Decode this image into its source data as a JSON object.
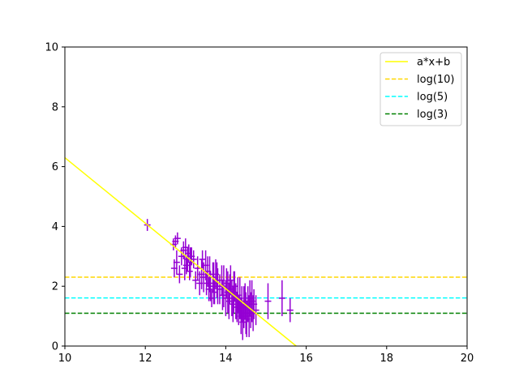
{
  "chart_data": {
    "type": "scatter",
    "xlim": [
      10,
      20
    ],
    "ylim": [
      0,
      10
    ],
    "x_ticks": [
      10,
      12,
      14,
      16,
      18,
      20
    ],
    "y_ticks": [
      0,
      2,
      4,
      6,
      8,
      10
    ],
    "x_tick_labels": [
      "10",
      "12",
      "14",
      "16",
      "18",
      "20"
    ],
    "y_tick_labels": [
      "0",
      "2",
      "4",
      "6",
      "8",
      "10"
    ],
    "grid": false,
    "legend_placement": "top-right",
    "fit_line": {
      "name": "a*x+b",
      "color": "#ffff00",
      "points": [
        [
          10,
          6.3
        ],
        [
          15.75,
          0
        ]
      ]
    },
    "reference_lines": [
      {
        "name": "log(10)",
        "y": 2.303,
        "color": "#ffd700",
        "style": "dashed"
      },
      {
        "name": "log(5)",
        "y": 1.609,
        "color": "#00ffff",
        "style": "dashed"
      },
      {
        "name": "log(3)",
        "y": 1.099,
        "color": "#008000",
        "style": "dashed"
      }
    ],
    "error_points_color": "#9400d3",
    "error_points": [
      [
        12.05,
        4.05,
        0.2
      ],
      [
        12.7,
        3.4,
        0.2
      ],
      [
        12.72,
        2.6,
        0.3
      ],
      [
        12.75,
        3.5,
        0.2
      ],
      [
        12.78,
        2.8,
        0.4
      ],
      [
        12.8,
        3.6,
        0.2
      ],
      [
        12.85,
        2.4,
        0.3
      ],
      [
        12.9,
        3.0,
        0.3
      ],
      [
        12.95,
        3.2,
        0.3
      ],
      [
        12.98,
        2.6,
        0.4
      ],
      [
        13.0,
        3.3,
        0.3
      ],
      [
        13.02,
        2.7,
        0.3
      ],
      [
        13.05,
        2.9,
        0.4
      ],
      [
        13.08,
        3.1,
        0.3
      ],
      [
        13.1,
        2.5,
        0.3
      ],
      [
        13.12,
        2.8,
        0.5
      ],
      [
        13.15,
        3.0,
        0.3
      ],
      [
        13.2,
        2.9,
        0.3
      ],
      [
        13.25,
        2.2,
        0.3
      ],
      [
        13.3,
        2.6,
        0.4
      ],
      [
        13.35,
        2.1,
        0.4
      ],
      [
        13.4,
        2.4,
        0.5
      ],
      [
        13.42,
        2.9,
        0.3
      ],
      [
        13.45,
        2.3,
        0.5
      ],
      [
        13.5,
        2.7,
        0.5
      ],
      [
        13.52,
        2.1,
        0.4
      ],
      [
        13.55,
        2.5,
        0.5
      ],
      [
        13.58,
        1.9,
        0.4
      ],
      [
        13.6,
        2.4,
        0.6
      ],
      [
        13.62,
        2.0,
        0.5
      ],
      [
        13.65,
        1.6,
        0.3
      ],
      [
        13.68,
        2.3,
        0.5
      ],
      [
        13.7,
        2.1,
        0.7
      ],
      [
        13.72,
        1.8,
        0.4
      ],
      [
        13.75,
        2.4,
        0.5
      ],
      [
        13.78,
        2.2,
        0.6
      ],
      [
        13.8,
        2.0,
        0.6
      ],
      [
        13.85,
        1.9,
        0.5
      ],
      [
        13.9,
        2.2,
        0.5
      ],
      [
        13.92,
        1.7,
        0.5
      ],
      [
        13.95,
        2.0,
        0.7
      ],
      [
        14.0,
        1.6,
        0.6
      ],
      [
        14.02,
        2.1,
        0.5
      ],
      [
        14.05,
        1.8,
        0.7
      ],
      [
        14.08,
        1.5,
        0.6
      ],
      [
        14.1,
        1.9,
        0.5
      ],
      [
        14.12,
        2.2,
        0.5
      ],
      [
        14.15,
        1.6,
        0.6
      ],
      [
        14.18,
        1.4,
        0.6
      ],
      [
        14.2,
        1.8,
        0.7
      ],
      [
        14.22,
        2.0,
        0.5
      ],
      [
        14.25,
        1.5,
        0.6
      ],
      [
        14.28,
        1.3,
        0.5
      ],
      [
        14.3,
        1.7,
        0.6
      ],
      [
        14.32,
        1.2,
        0.5
      ],
      [
        14.35,
        1.6,
        0.7
      ],
      [
        14.38,
        1.0,
        0.6
      ],
      [
        14.4,
        1.4,
        0.6
      ],
      [
        14.42,
        0.8,
        0.6
      ],
      [
        14.45,
        1.3,
        0.7
      ],
      [
        14.48,
        1.5,
        0.6
      ],
      [
        14.5,
        1.1,
        0.7
      ],
      [
        14.52,
        0.9,
        0.6
      ],
      [
        14.55,
        1.4,
        0.6
      ],
      [
        14.58,
        1.0,
        0.7
      ],
      [
        14.6,
        1.6,
        0.6
      ],
      [
        14.62,
        1.2,
        0.6
      ],
      [
        14.65,
        1.5,
        0.7
      ],
      [
        14.68,
        1.1,
        0.6
      ],
      [
        14.7,
        1.4,
        0.5
      ],
      [
        14.75,
        1.2,
        0.5
      ],
      [
        15.05,
        1.5,
        0.6
      ],
      [
        15.4,
        1.6,
        0.6
      ],
      [
        15.6,
        1.2,
        0.4
      ]
    ]
  }
}
